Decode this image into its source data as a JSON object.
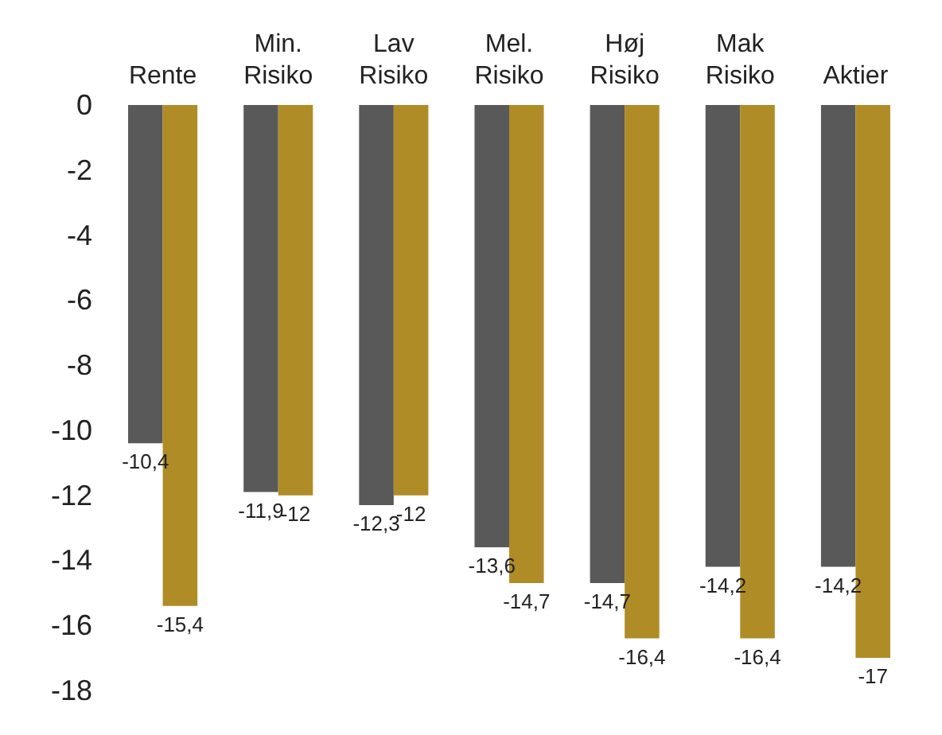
{
  "chart_data": {
    "type": "bar",
    "categories": [
      "Rente",
      "Min. Risiko",
      "Lav Risiko",
      "Mel. Risiko",
      "Høj Risiko",
      "Mak Risiko",
      "Aktier"
    ],
    "series": [
      {
        "color": "#595959",
        "values": [
          -10.4,
          -11.9,
          -12.3,
          -13.6,
          -14.7,
          -14.2,
          -14.2
        ],
        "value_labels": [
          "-10,4",
          "-11,9",
          "-12,3",
          "-13,6",
          "-14,7",
          "-14,2",
          "-14,2"
        ]
      },
      {
        "color": "#b08c26",
        "values": [
          -15.4,
          -12,
          -12,
          -14.7,
          -16.4,
          -16.4,
          -17
        ],
        "value_labels": [
          "-15,4",
          "-12",
          "-12",
          "-14,7",
          "-16,4",
          "-16,4",
          "-17"
        ]
      }
    ],
    "ylim": [
      -18,
      0
    ],
    "yticks": [
      0,
      -2,
      -4,
      -6,
      -8,
      -10,
      -12,
      -14,
      -16,
      -18
    ],
    "grid": false,
    "legend": false
  }
}
